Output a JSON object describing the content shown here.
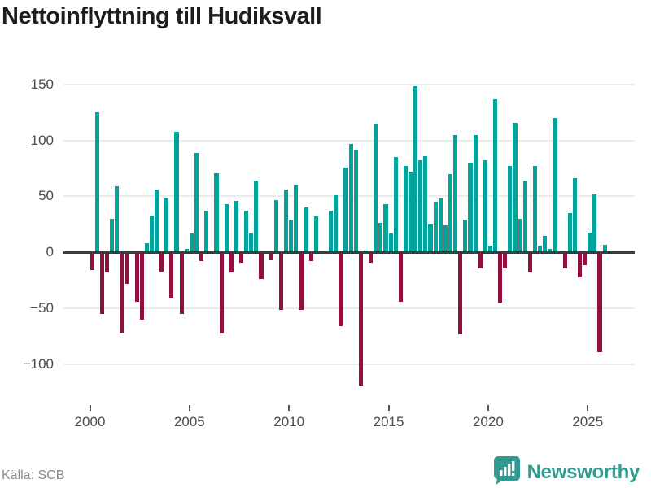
{
  "title": "Nettoinflyttning till Hudiksvall",
  "source_note": "Källa: SCB",
  "branding": {
    "logo_text": "Newsworthy",
    "logo_icon": "bar-chart-speech-bubble-icon"
  },
  "colors": {
    "positive_bar": "#00A49B",
    "negative_bar": "#90103F",
    "gridline": "#ebebeb",
    "zero_line": "#3b3b3b",
    "axis_text": "#4b4b4b",
    "title_text": "#1d1d1b",
    "source_text": "#8a8a93",
    "brand_teal": "#2F9B91"
  },
  "chart_data": {
    "type": "bar",
    "title": "Nettoinflyttning till Hudiksvall",
    "frequency": "quarterly",
    "start_year": 2000,
    "end_year": 2025,
    "y_ticks": [
      150,
      100,
      50,
      0,
      -50,
      -100
    ],
    "y_tick_labels": [
      "150",
      "100",
      "50",
      "0",
      "−50",
      "−100"
    ],
    "x_tick_labels": [
      "2000",
      "2005",
      "2010",
      "2015",
      "2020",
      "2025"
    ],
    "ylim": [
      -135,
      160
    ],
    "grid": true,
    "legend": "none",
    "values_by_year": {
      "2000": [
        -15,
        125,
        -54,
        -17
      ],
      "2001": [
        30,
        59,
        -71,
        -27
      ],
      "2002": [
        1,
        -43,
        -59,
        8
      ],
      "2003": [
        33,
        56,
        -16,
        48
      ],
      "2004": [
        -40,
        108,
        -54,
        3
      ],
      "2005": [
        17,
        89,
        -7,
        37
      ],
      "2006": [
        0,
        71,
        -71,
        43
      ],
      "2007": [
        -17,
        46,
        -8,
        37
      ],
      "2008": [
        17,
        64,
        -23,
        0
      ],
      "2009": [
        -6,
        47,
        -50,
        56
      ],
      "2010": [
        29,
        60,
        -50,
        40
      ],
      "2011": [
        -7,
        32,
        0,
        0
      ],
      "2012": [
        37,
        51,
        -65,
        76
      ],
      "2013": [
        97,
        92,
        -118,
        2
      ],
      "2014": [
        -8,
        115,
        26,
        43
      ],
      "2015": [
        17,
        85,
        -43,
        77
      ],
      "2016": [
        72,
        148,
        82,
        86
      ],
      "2017": [
        25,
        45,
        48,
        24
      ],
      "2018": [
        70,
        105,
        -72,
        29
      ],
      "2019": [
        80,
        105,
        -13,
        82
      ],
      "2020": [
        6,
        137,
        -44,
        -13
      ],
      "2021": [
        77,
        116,
        30,
        64
      ],
      "2022": [
        -17,
        77,
        6,
        15
      ],
      "2023": [
        3,
        120,
        0,
        -13
      ],
      "2024": [
        35,
        66,
        -21,
        -10
      ],
      "2025": [
        18,
        52,
        -88,
        7
      ]
    }
  }
}
